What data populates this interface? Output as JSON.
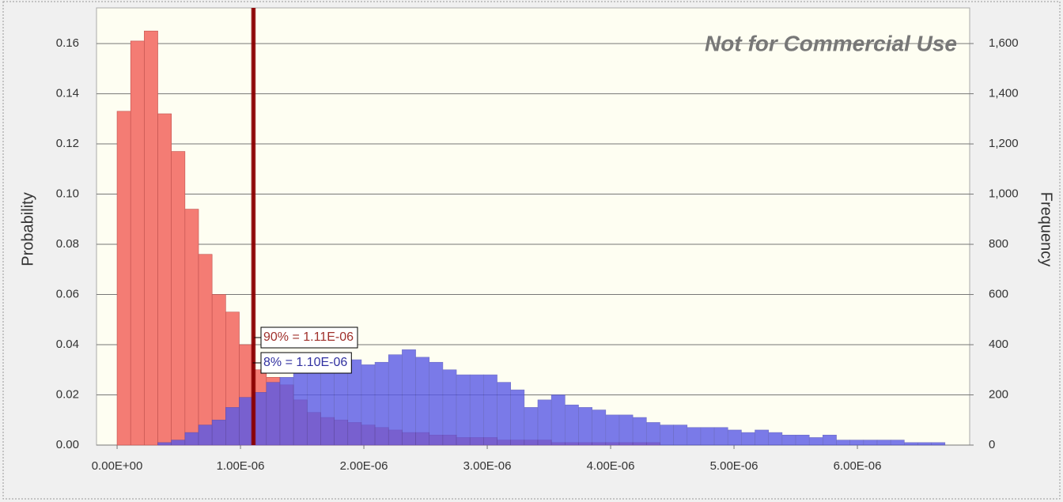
{
  "chart_data": {
    "type": "histogram",
    "watermark": "Not for Commercial Use",
    "ylabel": "Probability",
    "y2label": "Frequency",
    "bins": [
      0,
      1.1e-07,
      2.2e-07,
      3.3e-07,
      4.4e-07,
      5.5e-07,
      6.6e-07,
      7.7e-07,
      8.8e-07,
      9.9e-07,
      1.1e-06,
      1.21e-06,
      1.32e-06,
      1.43e-06,
      1.54e-06,
      1.65e-06,
      1.76e-06,
      1.87e-06,
      1.98e-06,
      2.09e-06,
      2.2e-06,
      2.31e-06,
      2.42e-06,
      2.53e-06,
      2.64e-06,
      2.75e-06,
      2.86e-06,
      2.97e-06,
      3.08e-06,
      3.19e-06,
      3.3e-06,
      3.41e-06,
      3.52e-06,
      3.63e-06,
      3.74e-06,
      3.85e-06,
      3.96e-06,
      4.07e-06,
      4.18e-06,
      4.29e-06,
      4.4e-06,
      4.51e-06,
      4.62e-06,
      4.73e-06,
      4.84e-06,
      4.95e-06,
      5.06e-06,
      5.17e-06,
      5.28e-06,
      5.39e-06,
      5.5e-06,
      5.61e-06,
      5.72e-06,
      5.83e-06,
      5.94e-06,
      6.05e-06,
      6.16e-06,
      6.27e-06,
      6.38e-06,
      6.49e-06,
      6.6e-06,
      6.71e-06
    ],
    "series": [
      {
        "color": "#f47c74",
        "stroke": "#c0504d",
        "opacity": 1,
        "values": [
          0.133,
          0.161,
          0.165,
          0.132,
          0.117,
          0.094,
          0.076,
          0.06,
          0.053,
          0.04,
          0.03,
          0.027,
          0.024,
          0.018,
          0.013,
          0.011,
          0.01,
          0.009,
          0.008,
          0.007,
          0.006,
          0.005,
          0.005,
          0.004,
          0.004,
          0.003,
          0.003,
          0.003,
          0.002,
          0.002,
          0.002,
          0.002,
          0.001,
          0.001,
          0.001,
          0.001,
          0.001,
          0.001,
          0.001,
          0.001,
          0,
          0,
          0,
          0,
          0,
          0,
          0,
          0,
          0,
          0,
          0,
          0,
          0,
          0,
          0,
          0,
          0,
          0,
          0,
          0,
          0
        ]
      },
      {
        "color": "#5a5ae6",
        "stroke": "#4a4ab8",
        "opacity": 0.8,
        "values": [
          0,
          0,
          0,
          0.001,
          0.002,
          0.005,
          0.008,
          0.01,
          0.015,
          0.019,
          0.021,
          0.025,
          0.027,
          0.03,
          0.032,
          0.033,
          0.033,
          0.034,
          0.032,
          0.033,
          0.036,
          0.038,
          0.035,
          0.033,
          0.03,
          0.028,
          0.028,
          0.028,
          0.025,
          0.022,
          0.015,
          0.018,
          0.02,
          0.016,
          0.015,
          0.014,
          0.012,
          0.012,
          0.011,
          0.009,
          0.008,
          0.008,
          0.007,
          0.007,
          0.007,
          0.006,
          0.005,
          0.006,
          0.005,
          0.004,
          0.004,
          0.003,
          0.004,
          0.002,
          0.002,
          0.002,
          0.002,
          0.002,
          0.001,
          0.001,
          0.001
        ]
      }
    ],
    "markers": [
      {
        "label": "90% = 1.11E-06",
        "value": 1.11e-06,
        "color": "#a0302c"
      },
      {
        "label": "8% = 1.10E-06",
        "value": 1.1e-06,
        "color": "#3030a0"
      }
    ],
    "xlim": [
      -1.67e-07,
      6.91e-06
    ],
    "xticks": [
      {
        "value": 0,
        "label": "0.00E+00"
      },
      {
        "value": 1e-06,
        "label": "1.00E-06"
      },
      {
        "value": 2e-06,
        "label": "2.00E-06"
      },
      {
        "value": 3e-06,
        "label": "3.00E-06"
      },
      {
        "value": 4e-06,
        "label": "4.00E-06"
      },
      {
        "value": 5e-06,
        "label": "5.00E-06"
      },
      {
        "value": 6e-06,
        "label": "6.00E-06"
      }
    ],
    "ylim": [
      0,
      0.1742
    ],
    "yticks": [
      {
        "value": 0,
        "label": "0.00"
      },
      0.02,
      0.04,
      0.06,
      0.08,
      {
        "value": 0.1,
        "label": "0.10"
      },
      0.12,
      0.14,
      0.16
    ],
    "y2lim": [
      0,
      1742
    ],
    "y2ticks": [
      0,
      200,
      400,
      600,
      800,
      {
        "value": 1000,
        "label": "1,000"
      },
      {
        "value": 1200,
        "label": "1,200"
      },
      {
        "value": 1400,
        "label": "1,400"
      },
      {
        "value": 1600,
        "label": "1,600"
      }
    ],
    "grid": true
  }
}
